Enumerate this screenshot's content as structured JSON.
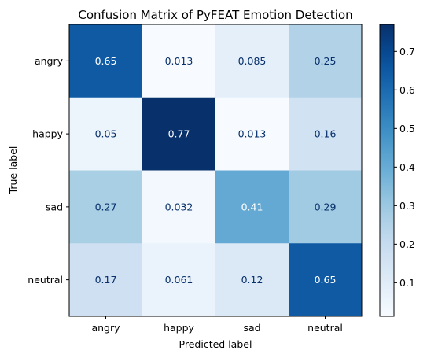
{
  "chart_data": {
    "type": "heatmap",
    "title": "Confusion Matrix of PyFEAT Emotion Detection",
    "xlabel": "Predicted label",
    "ylabel": "True label",
    "x_categories": [
      "angry",
      "happy",
      "sad",
      "neutral"
    ],
    "y_categories": [
      "angry",
      "happy",
      "sad",
      "neutral"
    ],
    "values": [
      [
        0.65,
        0.013,
        0.085,
        0.25
      ],
      [
        0.05,
        0.77,
        0.013,
        0.16
      ],
      [
        0.27,
        0.032,
        0.41,
        0.29
      ],
      [
        0.17,
        0.061,
        0.12,
        0.65
      ]
    ],
    "value_labels": [
      [
        "0.65",
        "0.013",
        "0.085",
        "0.25"
      ],
      [
        "0.05",
        "0.77",
        "0.013",
        "0.16"
      ],
      [
        "0.27",
        "0.032",
        "0.41",
        "0.29"
      ],
      [
        "0.17",
        "0.061",
        "0.12",
        "0.65"
      ]
    ],
    "colormap": "Blues",
    "colorbar": {
      "range": [
        0.013,
        0.77
      ],
      "ticks": [
        0.1,
        0.2,
        0.3,
        0.4,
        0.5,
        0.6,
        0.7
      ],
      "tick_labels": [
        "0.1",
        "0.2",
        "0.3",
        "0.4",
        "0.5",
        "0.6",
        "0.7"
      ]
    },
    "text_colors": {
      "dark": "#08306b",
      "light": "#ffffff"
    }
  }
}
